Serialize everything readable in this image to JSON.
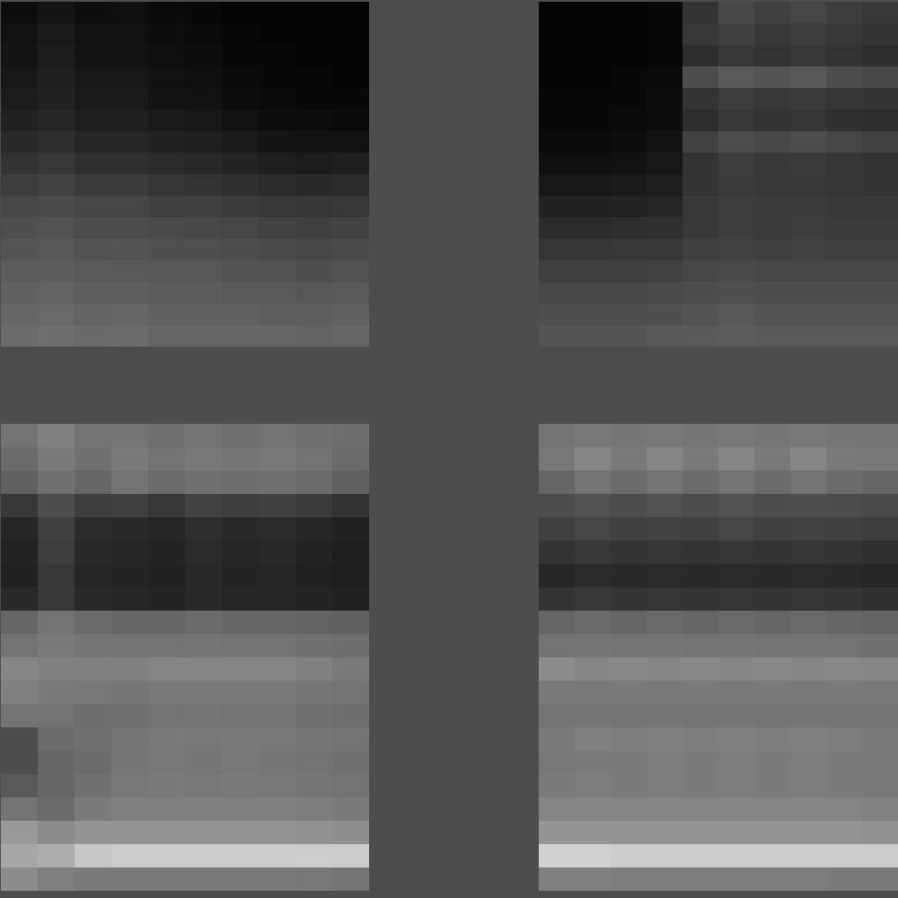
{
  "chart_data": [
    {
      "type": "heatmap",
      "color": "gray",
      "tick_labels": false,
      "clim": [
        0,
        1
      ],
      "cells": [
        [
          0.05,
          0.08,
          0.05,
          0.06,
          0.04,
          0.03,
          0.02,
          0.02,
          0.02,
          0.02
        ],
        [
          0.07,
          0.1,
          0.07,
          0.07,
          0.05,
          0.04,
          0.03,
          0.02,
          0.02,
          0.02
        ],
        [
          0.08,
          0.11,
          0.08,
          0.08,
          0.06,
          0.05,
          0.03,
          0.03,
          0.02,
          0.02
        ],
        [
          0.09,
          0.12,
          0.09,
          0.09,
          0.07,
          0.06,
          0.04,
          0.03,
          0.03,
          0.02
        ],
        [
          0.11,
          0.13,
          0.1,
          0.1,
          0.08,
          0.07,
          0.05,
          0.04,
          0.03,
          0.03
        ],
        [
          0.13,
          0.15,
          0.12,
          0.12,
          0.1,
          0.09,
          0.07,
          0.05,
          0.05,
          0.04
        ],
        [
          0.16,
          0.18,
          0.15,
          0.15,
          0.13,
          0.12,
          0.1,
          0.08,
          0.07,
          0.07
        ],
        [
          0.2,
          0.22,
          0.19,
          0.19,
          0.17,
          0.16,
          0.14,
          0.12,
          0.11,
          0.12
        ],
        [
          0.24,
          0.26,
          0.23,
          0.23,
          0.21,
          0.2,
          0.19,
          0.17,
          0.16,
          0.17
        ],
        [
          0.28,
          0.29,
          0.27,
          0.27,
          0.25,
          0.25,
          0.23,
          0.22,
          0.21,
          0.22
        ],
        [
          0.31,
          0.32,
          0.3,
          0.3,
          0.29,
          0.28,
          0.27,
          0.26,
          0.25,
          0.26
        ],
        [
          0.33,
          0.34,
          0.32,
          0.33,
          0.31,
          0.31,
          0.3,
          0.29,
          0.28,
          0.29
        ],
        [
          0.36,
          0.36,
          0.35,
          0.35,
          0.34,
          0.34,
          0.33,
          0.32,
          0.31,
          0.32
        ],
        [
          0.38,
          0.39,
          0.37,
          0.37,
          0.36,
          0.36,
          0.35,
          0.35,
          0.34,
          0.35
        ],
        [
          0.4,
          0.41,
          0.39,
          0.4,
          0.38,
          0.38,
          0.38,
          0.37,
          0.37,
          0.38
        ],
        [
          0.42,
          0.43,
          0.41,
          0.42,
          0.4,
          0.4,
          0.4,
          0.4,
          0.39,
          0.4
        ]
      ]
    },
    {
      "type": "heatmap",
      "color": "gray",
      "tick_labels": false,
      "clim": [
        0,
        1
      ],
      "cells": [
        [
          0.02,
          0.02,
          0.02,
          0.03,
          0.2,
          0.28,
          0.25,
          0.27,
          0.24,
          0.22
        ],
        [
          0.02,
          0.02,
          0.02,
          0.03,
          0.22,
          0.25,
          0.22,
          0.24,
          0.22,
          0.2
        ],
        [
          0.02,
          0.02,
          0.02,
          0.03,
          0.18,
          0.22,
          0.2,
          0.22,
          0.2,
          0.18
        ],
        [
          0.02,
          0.02,
          0.03,
          0.04,
          0.3,
          0.35,
          0.33,
          0.34,
          0.3,
          0.28
        ],
        [
          0.03,
          0.03,
          0.03,
          0.05,
          0.2,
          0.24,
          0.22,
          0.23,
          0.21,
          0.2
        ],
        [
          0.03,
          0.03,
          0.04,
          0.05,
          0.18,
          0.22,
          0.2,
          0.21,
          0.19,
          0.18
        ],
        [
          0.04,
          0.04,
          0.05,
          0.07,
          0.26,
          0.3,
          0.28,
          0.3,
          0.27,
          0.26
        ],
        [
          0.06,
          0.06,
          0.07,
          0.09,
          0.2,
          0.24,
          0.22,
          0.23,
          0.21,
          0.2
        ],
        [
          0.09,
          0.09,
          0.1,
          0.12,
          0.2,
          0.23,
          0.22,
          0.22,
          0.21,
          0.2
        ],
        [
          0.13,
          0.13,
          0.14,
          0.15,
          0.22,
          0.24,
          0.23,
          0.23,
          0.22,
          0.22
        ],
        [
          0.17,
          0.17,
          0.18,
          0.19,
          0.22,
          0.24,
          0.23,
          0.24,
          0.23,
          0.23
        ],
        [
          0.21,
          0.21,
          0.22,
          0.22,
          0.25,
          0.26,
          0.25,
          0.26,
          0.25,
          0.25
        ],
        [
          0.25,
          0.25,
          0.25,
          0.26,
          0.28,
          0.29,
          0.28,
          0.28,
          0.28,
          0.28
        ],
        [
          0.28,
          0.28,
          0.28,
          0.29,
          0.3,
          0.31,
          0.3,
          0.3,
          0.3,
          0.3
        ],
        [
          0.31,
          0.31,
          0.31,
          0.31,
          0.33,
          0.34,
          0.33,
          0.33,
          0.33,
          0.33
        ],
        [
          0.33,
          0.33,
          0.33,
          0.34,
          0.35,
          0.36,
          0.35,
          0.35,
          0.35,
          0.35
        ]
      ]
    },
    {
      "type": "heatmap",
      "color": "gray",
      "tick_labels": false,
      "clim": [
        0,
        1
      ],
      "cells": [
        [
          0.45,
          0.5,
          0.45,
          0.46,
          0.44,
          0.45,
          0.44,
          0.45,
          0.44,
          0.43
        ],
        [
          0.42,
          0.48,
          0.44,
          0.48,
          0.45,
          0.47,
          0.46,
          0.47,
          0.45,
          0.42
        ],
        [
          0.38,
          0.44,
          0.4,
          0.45,
          0.42,
          0.44,
          0.43,
          0.44,
          0.42,
          0.38
        ],
        [
          0.22,
          0.3,
          0.24,
          0.25,
          0.22,
          0.26,
          0.24,
          0.25,
          0.23,
          0.2
        ],
        [
          0.15,
          0.25,
          0.17,
          0.16,
          0.15,
          0.18,
          0.16,
          0.17,
          0.15,
          0.13
        ],
        [
          0.14,
          0.24,
          0.16,
          0.15,
          0.14,
          0.17,
          0.15,
          0.16,
          0.14,
          0.12
        ],
        [
          0.13,
          0.22,
          0.15,
          0.14,
          0.13,
          0.16,
          0.14,
          0.15,
          0.13,
          0.12
        ],
        [
          0.16,
          0.22,
          0.16,
          0.15,
          0.14,
          0.16,
          0.15,
          0.15,
          0.14,
          0.13
        ],
        [
          0.4,
          0.45,
          0.42,
          0.4,
          0.4,
          0.42,
          0.4,
          0.4,
          0.39,
          0.38
        ],
        [
          0.45,
          0.48,
          0.46,
          0.45,
          0.45,
          0.46,
          0.45,
          0.45,
          0.44,
          0.43
        ],
        [
          0.52,
          0.5,
          0.5,
          0.5,
          0.52,
          0.52,
          0.52,
          0.52,
          0.5,
          0.48
        ],
        [
          0.5,
          0.48,
          0.47,
          0.46,
          0.48,
          0.48,
          0.48,
          0.48,
          0.46,
          0.45
        ],
        [
          0.45,
          0.45,
          0.43,
          0.44,
          0.45,
          0.46,
          0.45,
          0.46,
          0.44,
          0.43
        ],
        [
          0.3,
          0.42,
          0.44,
          0.46,
          0.48,
          0.47,
          0.48,
          0.47,
          0.46,
          0.45
        ],
        [
          0.3,
          0.4,
          0.42,
          0.46,
          0.47,
          0.46,
          0.47,
          0.46,
          0.45,
          0.44
        ],
        [
          0.35,
          0.4,
          0.44,
          0.47,
          0.48,
          0.47,
          0.48,
          0.47,
          0.46,
          0.45
        ],
        [
          0.45,
          0.42,
          0.48,
          0.5,
          0.5,
          0.5,
          0.5,
          0.5,
          0.49,
          0.48
        ],
        [
          0.6,
          0.55,
          0.58,
          0.58,
          0.58,
          0.58,
          0.58,
          0.58,
          0.57,
          0.56
        ],
        [
          0.65,
          0.68,
          0.78,
          0.8,
          0.8,
          0.8,
          0.8,
          0.8,
          0.8,
          0.8
        ],
        [
          0.55,
          0.5,
          0.48,
          0.48,
          0.48,
          0.48,
          0.48,
          0.48,
          0.47,
          0.46
        ]
      ]
    },
    {
      "type": "heatmap",
      "color": "gray",
      "tick_labels": false,
      "clim": [
        0,
        1
      ],
      "cells": [
        [
          0.45,
          0.47,
          0.46,
          0.47,
          0.46,
          0.47,
          0.46,
          0.47,
          0.46,
          0.45
        ],
        [
          0.47,
          0.52,
          0.48,
          0.52,
          0.48,
          0.52,
          0.48,
          0.52,
          0.48,
          0.47
        ],
        [
          0.4,
          0.45,
          0.42,
          0.45,
          0.42,
          0.45,
          0.42,
          0.45,
          0.42,
          0.4
        ],
        [
          0.3,
          0.32,
          0.3,
          0.32,
          0.3,
          0.32,
          0.3,
          0.31,
          0.3,
          0.29
        ],
        [
          0.25,
          0.27,
          0.25,
          0.26,
          0.25,
          0.27,
          0.25,
          0.26,
          0.25,
          0.24
        ],
        [
          0.2,
          0.22,
          0.2,
          0.21,
          0.2,
          0.21,
          0.2,
          0.21,
          0.2,
          0.19
        ],
        [
          0.15,
          0.17,
          0.16,
          0.17,
          0.16,
          0.17,
          0.16,
          0.17,
          0.16,
          0.15
        ],
        [
          0.2,
          0.22,
          0.2,
          0.21,
          0.2,
          0.21,
          0.2,
          0.21,
          0.2,
          0.19
        ],
        [
          0.4,
          0.42,
          0.4,
          0.41,
          0.4,
          0.41,
          0.4,
          0.41,
          0.4,
          0.39
        ],
        [
          0.45,
          0.46,
          0.45,
          0.46,
          0.45,
          0.46,
          0.45,
          0.46,
          0.45,
          0.44
        ],
        [
          0.55,
          0.52,
          0.53,
          0.52,
          0.53,
          0.52,
          0.53,
          0.52,
          0.53,
          0.52
        ],
        [
          0.48,
          0.47,
          0.48,
          0.47,
          0.48,
          0.47,
          0.48,
          0.47,
          0.48,
          0.47
        ],
        [
          0.45,
          0.46,
          0.45,
          0.46,
          0.45,
          0.46,
          0.45,
          0.46,
          0.45,
          0.45
        ],
        [
          0.48,
          0.5,
          0.49,
          0.5,
          0.49,
          0.5,
          0.49,
          0.5,
          0.49,
          0.48
        ],
        [
          0.47,
          0.48,
          0.48,
          0.49,
          0.48,
          0.49,
          0.48,
          0.49,
          0.48,
          0.47
        ],
        [
          0.48,
          0.49,
          0.48,
          0.49,
          0.48,
          0.49,
          0.48,
          0.49,
          0.48,
          0.47
        ],
        [
          0.52,
          0.52,
          0.52,
          0.52,
          0.52,
          0.52,
          0.52,
          0.52,
          0.52,
          0.51
        ],
        [
          0.58,
          0.58,
          0.58,
          0.58,
          0.58,
          0.58,
          0.58,
          0.58,
          0.58,
          0.57
        ],
        [
          0.82,
          0.82,
          0.8,
          0.8,
          0.8,
          0.8,
          0.8,
          0.8,
          0.8,
          0.8
        ],
        [
          0.5,
          0.5,
          0.49,
          0.49,
          0.49,
          0.49,
          0.49,
          0.49,
          0.48,
          0.48
        ]
      ]
    }
  ]
}
